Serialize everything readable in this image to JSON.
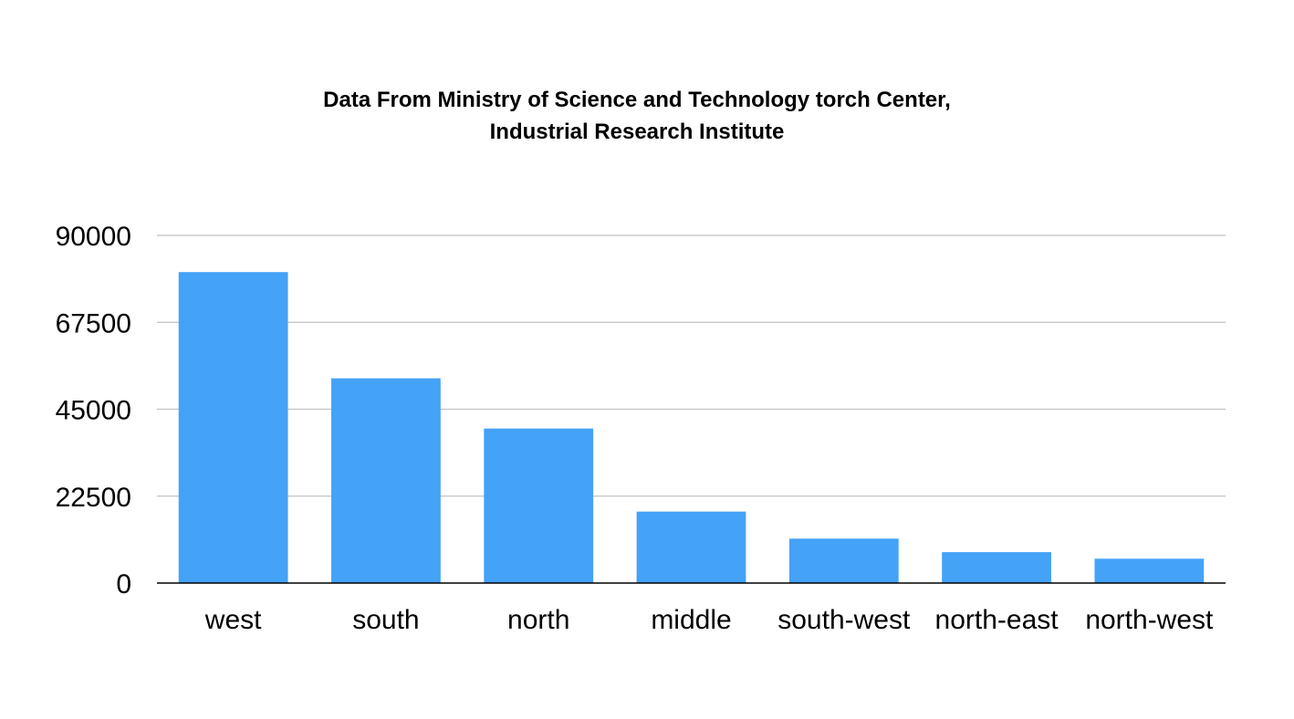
{
  "chart_data": {
    "type": "bar",
    "title_lines": [
      "Data From Ministry of Science and Technology torch Center,",
      "Industrial Research Institute"
    ],
    "categories": [
      "west",
      "south",
      "north",
      "middle",
      "south-west",
      "north-east",
      "north-west"
    ],
    "values": [
      80500,
      53000,
      40000,
      18500,
      11500,
      8000,
      6300
    ],
    "yticks": [
      0,
      22500,
      45000,
      67500,
      90000
    ],
    "ylim": [
      0,
      90000
    ],
    "xlabel": "",
    "ylabel": "",
    "grid": true,
    "legend": "none",
    "bar_color": "#44a2f7",
    "grid_color": "#c0c0c0",
    "axis_color": "#000000"
  }
}
